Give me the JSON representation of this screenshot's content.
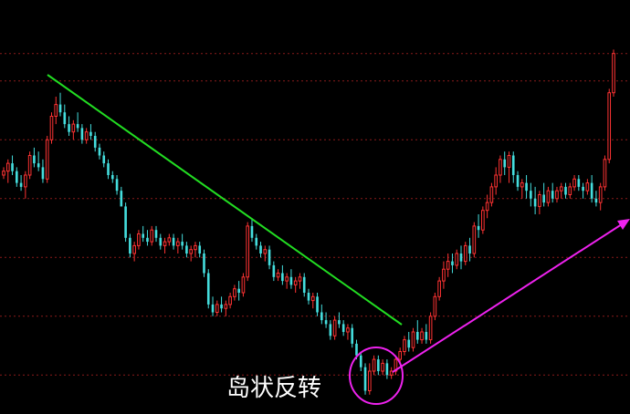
{
  "chart_data": {
    "type": "candlestick",
    "annotation": "岛状反转",
    "colors": {
      "background": "#000000",
      "up": "#ff3333",
      "down": "#44dddd",
      "gridline": "#8a1a1a",
      "downtrend_line": "#22dd22",
      "uptrend_arrow": "#ee22ee",
      "highlight_circle": "#ee22ee",
      "annotation_text": "#ffffff"
    },
    "grid": true,
    "legend": "none",
    "y_range": [
      0,
      100
    ],
    "gridline_levels": [
      91,
      84,
      69,
      54,
      39,
      24,
      9
    ],
    "candles": [
      [
        60,
        62,
        59,
        61
      ],
      [
        61,
        64,
        58,
        63
      ],
      [
        63,
        65,
        60,
        61
      ],
      [
        61,
        62,
        57,
        58
      ],
      [
        58,
        60,
        56,
        57
      ],
      [
        57,
        61,
        54,
        60
      ],
      [
        60,
        66,
        59,
        65
      ],
      [
        65,
        67,
        62,
        63
      ],
      [
        63,
        66,
        61,
        62
      ],
      [
        62,
        64,
        58,
        59
      ],
      [
        59,
        70,
        58,
        69
      ],
      [
        69,
        76,
        68,
        75
      ],
      [
        75,
        80,
        73,
        78
      ],
      [
        78,
        81,
        75,
        76
      ],
      [
        76,
        78,
        72,
        73
      ],
      [
        73,
        75,
        70,
        71
      ],
      [
        71,
        74,
        69,
        73
      ],
      [
        73,
        76,
        71,
        72
      ],
      [
        72,
        73,
        68,
        69
      ],
      [
        69,
        72,
        68,
        71
      ],
      [
        71,
        73,
        69,
        70
      ],
      [
        70,
        71,
        66,
        67
      ],
      [
        67,
        68,
        64,
        65
      ],
      [
        65,
        66,
        62,
        63
      ],
      [
        63,
        64,
        59,
        60
      ],
      [
        60,
        61,
        58,
        59
      ],
      [
        59,
        60,
        55,
        56
      ],
      [
        56,
        57,
        52,
        52
      ],
      [
        52,
        53,
        43,
        44
      ],
      [
        44,
        45,
        39,
        40
      ],
      [
        40,
        43,
        38,
        42
      ],
      [
        42,
        46,
        41,
        45
      ],
      [
        45,
        47,
        43,
        44
      ],
      [
        44,
        46,
        42,
        43
      ],
      [
        43,
        47,
        42,
        46
      ],
      [
        46,
        47,
        43,
        44
      ],
      [
        44,
        45,
        41,
        42
      ],
      [
        42,
        44,
        40,
        43
      ],
      [
        43,
        45,
        42,
        44
      ],
      [
        44,
        45,
        41,
        42
      ],
      [
        42,
        44,
        40,
        43
      ],
      [
        43,
        45,
        41,
        42
      ],
      [
        42,
        43,
        39,
        40
      ],
      [
        40,
        42,
        38,
        41
      ],
      [
        41,
        43,
        39,
        42
      ],
      [
        42,
        43,
        39,
        40
      ],
      [
        40,
        41,
        34,
        35
      ],
      [
        35,
        36,
        26,
        27
      ],
      [
        27,
        29,
        24,
        25
      ],
      [
        25,
        28,
        24,
        27
      ],
      [
        27,
        29,
        25,
        26
      ],
      [
        26,
        28,
        24,
        27
      ],
      [
        27,
        30,
        26,
        29
      ],
      [
        29,
        32,
        28,
        31
      ],
      [
        31,
        33,
        28,
        30
      ],
      [
        30,
        35,
        29,
        34
      ],
      [
        34,
        48,
        33,
        47
      ],
      [
        47,
        49,
        43,
        44
      ],
      [
        44,
        45,
        41,
        42
      ],
      [
        42,
        43,
        39,
        40
      ],
      [
        40,
        42,
        38,
        41
      ],
      [
        41,
        42,
        36,
        37
      ],
      [
        37,
        38,
        33,
        34
      ],
      [
        34,
        36,
        33,
        35
      ],
      [
        35,
        37,
        32,
        33
      ],
      [
        33,
        35,
        31,
        34
      ],
      [
        34,
        36,
        31,
        32
      ],
      [
        32,
        34,
        30,
        33
      ],
      [
        33,
        35,
        31,
        34
      ],
      [
        34,
        35,
        29,
        30
      ],
      [
        30,
        31,
        27,
        28
      ],
      [
        28,
        30,
        26,
        29
      ],
      [
        29,
        30,
        24,
        25
      ],
      [
        25,
        27,
        22,
        23
      ],
      [
        23,
        25,
        21,
        22
      ],
      [
        22,
        23,
        18,
        19
      ],
      [
        19,
        24,
        18,
        23
      ],
      [
        23,
        25,
        21,
        22
      ],
      [
        22,
        23,
        19,
        20
      ],
      [
        20,
        22,
        18,
        21
      ],
      [
        21,
        22,
        16,
        17
      ],
      [
        17,
        18,
        13,
        14
      ],
      [
        14,
        15,
        10,
        11
      ],
      [
        11,
        12,
        4,
        5
      ],
      [
        5,
        12,
        4,
        10
      ],
      [
        10,
        14,
        9,
        13
      ],
      [
        13,
        14,
        9,
        10
      ],
      [
        10,
        13,
        9,
        12
      ],
      [
        12,
        13,
        8,
        9
      ],
      [
        9,
        11,
        8,
        10
      ],
      [
        10,
        14,
        9,
        13
      ],
      [
        13,
        16,
        12,
        15
      ],
      [
        15,
        19,
        14,
        18
      ],
      [
        18,
        20,
        15,
        16
      ],
      [
        16,
        21,
        15,
        20
      ],
      [
        20,
        23,
        17,
        18
      ],
      [
        18,
        21,
        17,
        20
      ],
      [
        20,
        22,
        17,
        18
      ],
      [
        18,
        25,
        17,
        24
      ],
      [
        24,
        30,
        23,
        29
      ],
      [
        29,
        34,
        28,
        33
      ],
      [
        33,
        38,
        31,
        36
      ],
      [
        36,
        40,
        34,
        38
      ],
      [
        38,
        40,
        35,
        37
      ],
      [
        37,
        41,
        36,
        40
      ],
      [
        40,
        42,
        36,
        38
      ],
      [
        38,
        43,
        37,
        42
      ],
      [
        42,
        44,
        38,
        40
      ],
      [
        40,
        48,
        39,
        47
      ],
      [
        47,
        50,
        44,
        46
      ],
      [
        46,
        52,
        45,
        51
      ],
      [
        51,
        55,
        49,
        53
      ],
      [
        53,
        58,
        52,
        57
      ],
      [
        57,
        62,
        55,
        60
      ],
      [
        60,
        65,
        58,
        64
      ],
      [
        64,
        66,
        60,
        62
      ],
      [
        62,
        66,
        58,
        65
      ],
      [
        65,
        66,
        58,
        60
      ],
      [
        60,
        61,
        56,
        57
      ],
      [
        57,
        59,
        54,
        58
      ],
      [
        58,
        60,
        54,
        56
      ],
      [
        56,
        58,
        52,
        54
      ],
      [
        54,
        57,
        50,
        52
      ],
      [
        52,
        56,
        50,
        55
      ],
      [
        55,
        58,
        52,
        53
      ],
      [
        53,
        57,
        52,
        56
      ],
      [
        56,
        58,
        53,
        54
      ],
      [
        54,
        57,
        53,
        56
      ],
      [
        56,
        58,
        54,
        57
      ],
      [
        57,
        58,
        54,
        55
      ],
      [
        55,
        58,
        54,
        57
      ],
      [
        57,
        60,
        56,
        59
      ],
      [
        59,
        60,
        56,
        57
      ],
      [
        57,
        58,
        54,
        56
      ],
      [
        56,
        59,
        55,
        58
      ],
      [
        58,
        60,
        53,
        54
      ],
      [
        54,
        56,
        52,
        53
      ],
      [
        53,
        58,
        51,
        57
      ],
      [
        57,
        65,
        56,
        64
      ],
      [
        64,
        82,
        63,
        81
      ],
      [
        81,
        92,
        80,
        91
      ]
    ]
  }
}
